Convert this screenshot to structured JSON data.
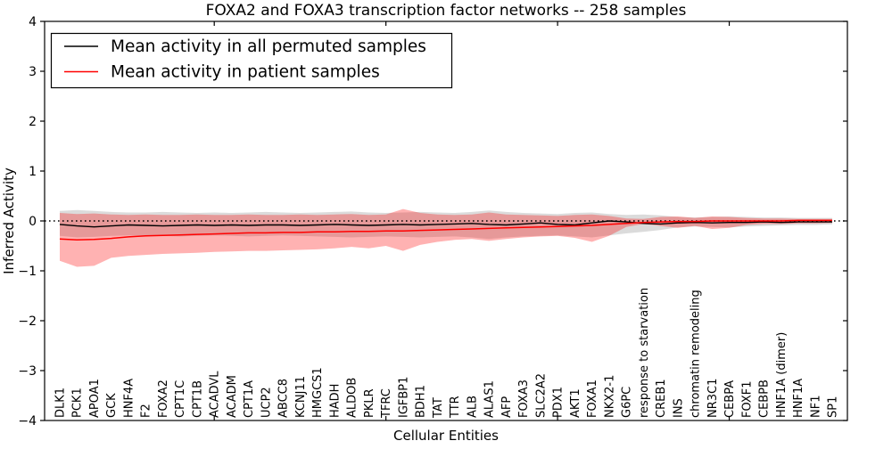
{
  "figure": {
    "background": "#ffffff",
    "frame_color": "#000000"
  },
  "chart_data": {
    "type": "line",
    "title": "FOXA2 and FOXA3 transcription factor networks -- 258 samples",
    "xlabel": "Cellular Entities",
    "ylabel": "Inferred Activity",
    "ylim": [
      -4,
      4
    ],
    "yticks": [
      {
        "value": -4,
        "label": "−4"
      },
      {
        "value": -3,
        "label": "−3"
      },
      {
        "value": -2,
        "label": "−2"
      },
      {
        "value": -1,
        "label": "−1"
      },
      {
        "value": 0,
        "label": "0"
      },
      {
        "value": 1,
        "label": "1"
      },
      {
        "value": 2,
        "label": "2"
      },
      {
        "value": 3,
        "label": "3"
      },
      {
        "value": 4,
        "label": "4"
      }
    ],
    "x_major_tick_indices": [
      9,
      19,
      29,
      39
    ],
    "grid": false,
    "legend_position": "upper-left",
    "zero_line": {
      "value": 0,
      "style": "dotted",
      "color": "#000000"
    },
    "categories": [
      "DLK1",
      "PCK1",
      "APOA1",
      "GCK",
      "HNF4A",
      "F2",
      "FOXA2",
      "CPT1C",
      "CPT1B",
      "ACADVL",
      "ACADM",
      "CPT1A",
      "UCP2",
      "ABCC8",
      "KCNJ11",
      "HMGCS1",
      "HADH",
      "ALDOB",
      "PKLR",
      "TFRC",
      "IGFBP1",
      "BDH1",
      "TAT",
      "TTR",
      "ALB",
      "ALAS1",
      "AFP",
      "FOXA3",
      "SLC2A2",
      "PDX1",
      "AKT1",
      "FOXA1",
      "NKX2-1",
      "G6PC",
      "response to starvation",
      "CREB1",
      "INS",
      "chromatin remodeling",
      "NR3C1",
      "CEBPA",
      "FOXF1",
      "CEBPB",
      "HNF1A (dimer)",
      "HNF1A",
      "NF1",
      "SP1"
    ],
    "series": [
      {
        "id": "permuted-mean-line",
        "name": "Mean activity in all permuted samples",
        "color": "#000000",
        "width": 1.4,
        "values": [
          -0.07,
          -0.1,
          -0.12,
          -0.1,
          -0.08,
          -0.09,
          -0.1,
          -0.09,
          -0.08,
          -0.09,
          -0.08,
          -0.09,
          -0.08,
          -0.08,
          -0.09,
          -0.08,
          -0.07,
          -0.08,
          -0.09,
          -0.08,
          -0.07,
          -0.08,
          -0.07,
          -0.06,
          -0.05,
          -0.07,
          -0.08,
          -0.06,
          -0.04,
          -0.07,
          -0.08,
          -0.04,
          0.0,
          -0.02,
          -0.05,
          -0.06,
          -0.04,
          -0.03,
          -0.04,
          -0.03,
          -0.03,
          -0.02,
          -0.03,
          -0.02,
          -0.02,
          -0.02
        ]
      },
      {
        "id": "patient-mean-line",
        "name": "Mean activity in patient samples",
        "color": "#ff0000",
        "width": 1.5,
        "values": [
          -0.36,
          -0.38,
          -0.37,
          -0.35,
          -0.32,
          -0.3,
          -0.29,
          -0.28,
          -0.27,
          -0.26,
          -0.25,
          -0.24,
          -0.24,
          -0.23,
          -0.23,
          -0.22,
          -0.22,
          -0.21,
          -0.21,
          -0.2,
          -0.2,
          -0.19,
          -0.18,
          -0.17,
          -0.16,
          -0.15,
          -0.14,
          -0.13,
          -0.12,
          -0.11,
          -0.1,
          -0.09,
          -0.07,
          -0.05,
          -0.03,
          -0.02,
          -0.01,
          -0.01,
          0.0,
          0.0,
          0.0,
          0.0,
          0.0,
          0.01,
          0.01,
          0.01
        ]
      }
    ],
    "bands": [
      {
        "id": "permuted-range",
        "fill": "rgba(0,0,0,0.14)",
        "upper": [
          0.2,
          0.22,
          0.2,
          0.18,
          0.17,
          0.17,
          0.18,
          0.17,
          0.16,
          0.17,
          0.16,
          0.17,
          0.18,
          0.17,
          0.16,
          0.17,
          0.18,
          0.19,
          0.17,
          0.16,
          0.17,
          0.18,
          0.17,
          0.16,
          0.18,
          0.21,
          0.18,
          0.16,
          0.15,
          0.14,
          0.16,
          0.17,
          0.14,
          0.12,
          0.13,
          0.11,
          0.08,
          0.07,
          0.08,
          0.09,
          0.08,
          0.07,
          0.07,
          0.06,
          0.06,
          0.06
        ],
        "lower": [
          -0.3,
          -0.33,
          -0.32,
          -0.3,
          -0.29,
          -0.29,
          -0.3,
          -0.31,
          -0.3,
          -0.29,
          -0.3,
          -0.31,
          -0.3,
          -0.29,
          -0.3,
          -0.31,
          -0.32,
          -0.33,
          -0.32,
          -0.31,
          -0.32,
          -0.33,
          -0.32,
          -0.31,
          -0.33,
          -0.36,
          -0.33,
          -0.31,
          -0.3,
          -0.29,
          -0.31,
          -0.33,
          -0.29,
          -0.25,
          -0.22,
          -0.18,
          -0.13,
          -0.11,
          -0.12,
          -0.13,
          -0.11,
          -0.1,
          -0.09,
          -0.08,
          -0.08,
          -0.07
        ]
      },
      {
        "id": "patient-range",
        "fill": "rgba(255,0,0,0.30)",
        "upper": [
          0.16,
          0.14,
          0.15,
          0.13,
          0.12,
          0.13,
          0.12,
          0.12,
          0.13,
          0.12,
          0.12,
          0.13,
          0.12,
          0.12,
          0.13,
          0.12,
          0.13,
          0.14,
          0.12,
          0.13,
          0.24,
          0.16,
          0.13,
          0.12,
          0.13,
          0.17,
          0.13,
          0.12,
          0.11,
          0.1,
          0.12,
          0.13,
          0.1,
          0.05,
          0.04,
          0.08,
          0.09,
          0.06,
          0.09,
          0.08,
          0.06,
          0.05,
          0.05,
          0.04,
          0.04,
          0.04
        ],
        "lower": [
          -0.8,
          -0.92,
          -0.9,
          -0.74,
          -0.7,
          -0.68,
          -0.66,
          -0.65,
          -0.64,
          -0.62,
          -0.61,
          -0.6,
          -0.6,
          -0.59,
          -0.58,
          -0.57,
          -0.55,
          -0.52,
          -0.55,
          -0.5,
          -0.6,
          -0.48,
          -0.42,
          -0.38,
          -0.36,
          -0.4,
          -0.36,
          -0.33,
          -0.31,
          -0.3,
          -0.34,
          -0.42,
          -0.3,
          -0.12,
          -0.06,
          -0.1,
          -0.14,
          -0.1,
          -0.16,
          -0.14,
          -0.08,
          -0.06,
          -0.06,
          -0.05,
          -0.05,
          -0.04
        ]
      }
    ]
  }
}
